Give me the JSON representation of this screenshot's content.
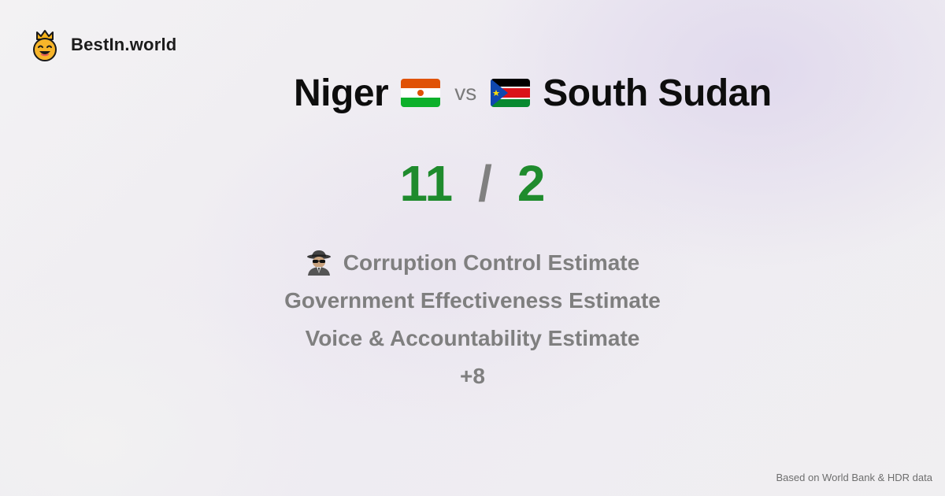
{
  "brand": {
    "name": "BestIn.world",
    "icon": "crown-smiley-icon"
  },
  "comparison": {
    "left_country": "Niger",
    "left_flag": "niger-flag-icon",
    "vs_label": "vs",
    "right_country": "South Sudan",
    "right_flag": "south-sudan-flag-icon"
  },
  "score": {
    "left": "11",
    "separator": "/",
    "right": "2"
  },
  "metrics": {
    "item1": "Corruption Control Estimate",
    "item1_icon": "spy-icon",
    "item2": "Government Effectiveness Estimate",
    "item3": "Voice & Accountability Estimate",
    "more": "+8"
  },
  "footer": {
    "source": "Based on World Bank & HDR data"
  },
  "colors": {
    "score_green": "#1f8b2d",
    "muted_gray": "#7f7f7f",
    "title_black": "#0d0d0d"
  }
}
